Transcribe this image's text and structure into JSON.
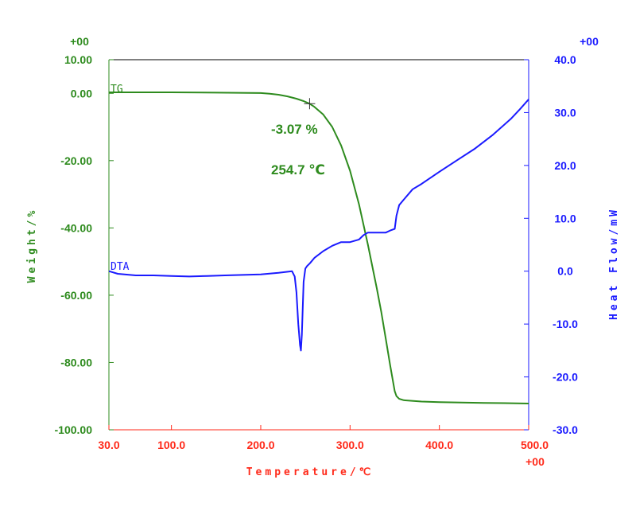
{
  "chart_data": {
    "type": "line",
    "xlabel": "Temperature/℃",
    "xlim": [
      30,
      500
    ],
    "x_ticks": [
      "30.0",
      "100.0",
      "200.0",
      "300.0",
      "400.0",
      "500.0"
    ],
    "x_tick_values": [
      30,
      100,
      200,
      300,
      400,
      500
    ],
    "x_multiplier": "+00",
    "y_left": {
      "label": "Weight/%",
      "lim": [
        -100,
        10
      ],
      "ticks": [
        "10.00",
        "0.00",
        "-20.00",
        "-40.00",
        "-60.00",
        "-80.00",
        "-100.00"
      ],
      "tick_values": [
        10,
        0,
        -20,
        -40,
        -60,
        -80,
        -100
      ],
      "multiplier": "+00",
      "color": "#2e8b1e"
    },
    "y_right": {
      "label": "Heat Flow/mW",
      "lim": [
        -30,
        40
      ],
      "ticks": [
        "40.0",
        "30.0",
        "20.0",
        "10.0",
        "0.0",
        "-10.0",
        "-20.0",
        "-30.0"
      ],
      "tick_values": [
        40,
        30,
        20,
        10,
        0,
        -10,
        -20,
        -30
      ],
      "multiplier": "+00",
      "color": "#1a1aff"
    },
    "x_axis_color": "#ff2a1a",
    "series": [
      {
        "name": "TG",
        "axis": "left",
        "color": "#2e8b1e",
        "x": [
          30,
          60,
          100,
          150,
          200,
          210,
          220,
          230,
          240,
          248,
          254.7,
          260,
          270,
          280,
          290,
          300,
          310,
          320,
          330,
          335,
          340,
          345,
          350,
          352,
          355,
          360,
          380,
          400,
          450,
          480,
          500
        ],
        "y": [
          0.3,
          0.3,
          0.3,
          0.2,
          0.1,
          -0.1,
          -0.4,
          -0.9,
          -1.6,
          -2.3,
          -3.07,
          -4.0,
          -6.3,
          -10.0,
          -15.5,
          -23.0,
          -33.0,
          -45.0,
          -58.0,
          -65.0,
          -73.0,
          -81.0,
          -88.5,
          -90.0,
          -90.8,
          -91.2,
          -91.6,
          -91.8,
          -92.0,
          -92.1,
          -92.2
        ]
      },
      {
        "name": "DTA",
        "axis": "right",
        "color": "#1a1aff",
        "x": [
          30,
          40,
          60,
          80,
          100,
          120,
          140,
          160,
          180,
          200,
          220,
          235,
          238,
          240,
          242,
          244,
          245,
          246,
          247,
          248,
          250,
          252,
          255,
          260,
          270,
          280,
          290,
          300,
          310,
          315,
          320,
          330,
          340,
          345,
          350,
          352,
          355,
          360,
          370,
          380,
          400,
          420,
          440,
          460,
          480,
          490,
          500
        ],
        "y": [
          0.0,
          -0.5,
          -0.8,
          -0.8,
          -0.9,
          -1.0,
          -0.9,
          -0.8,
          -0.7,
          -0.6,
          -0.3,
          0.0,
          -1.0,
          -4.0,
          -10.0,
          -14.0,
          -15.0,
          -12.0,
          -7.0,
          -2.0,
          0.5,
          1.0,
          1.5,
          2.5,
          3.8,
          4.8,
          5.5,
          5.5,
          6.0,
          6.8,
          7.3,
          7.3,
          7.3,
          7.7,
          8.0,
          10.5,
          12.5,
          13.5,
          15.5,
          16.5,
          18.8,
          21.0,
          23.2,
          25.8,
          28.8,
          30.6,
          32.5
        ]
      }
    ],
    "annotations": [
      {
        "text": "-3.07 %"
      },
      {
        "text": "254.7 ℃"
      }
    ],
    "marker": {
      "x": 254.7,
      "y": -3.07,
      "series": "TG"
    },
    "grid": false,
    "legend": "inline-labels"
  }
}
